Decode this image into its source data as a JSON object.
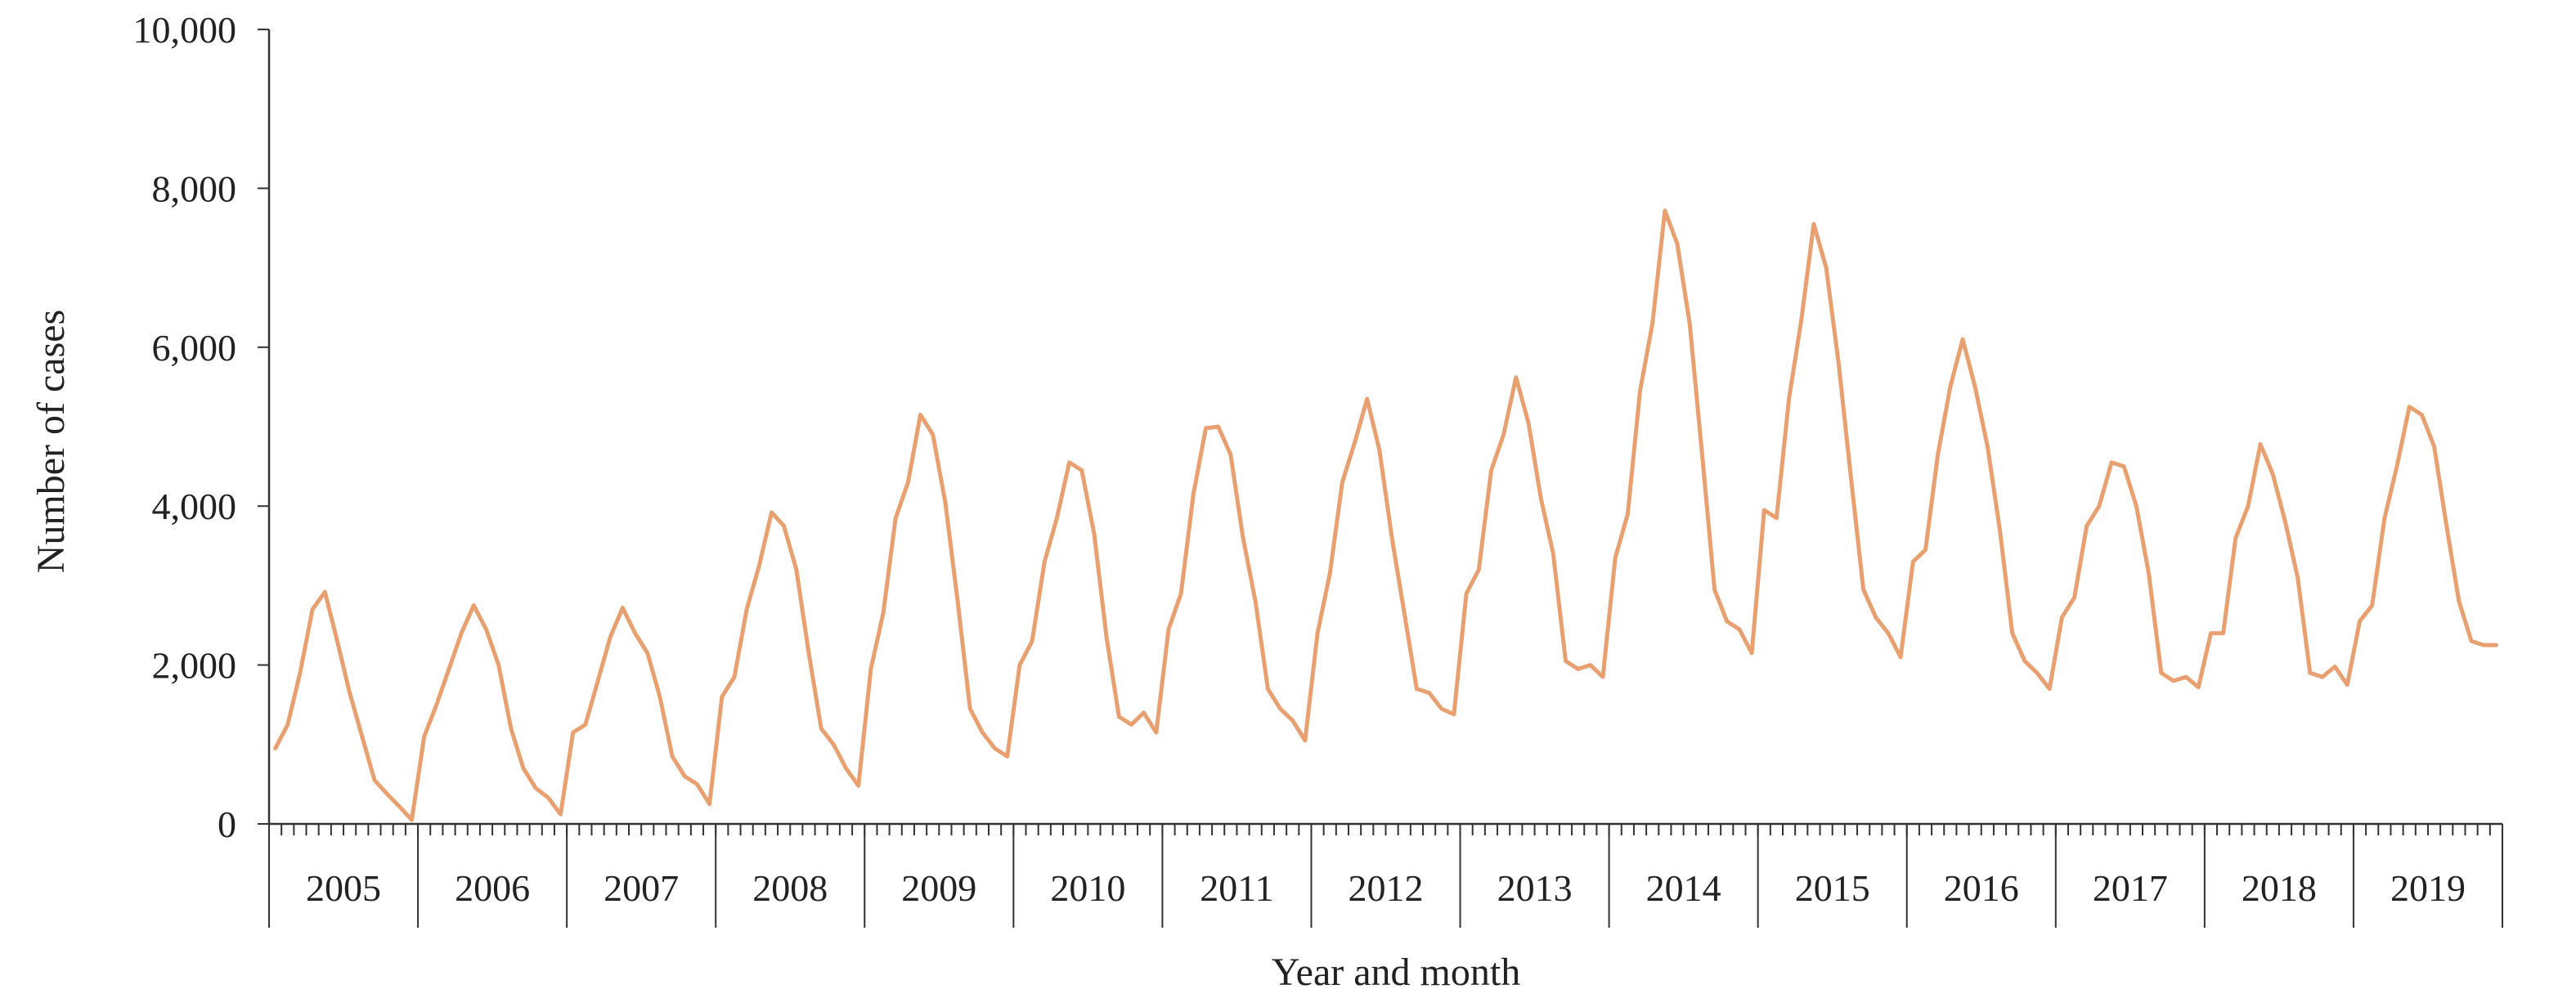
{
  "chart_data": {
    "type": "line",
    "title": "",
    "xlabel": "Year and month",
    "ylabel": "Number of cases",
    "ylim": [
      0,
      10000
    ],
    "y_ticks": [
      "0",
      "2,000",
      "4,000",
      "6,000",
      "8,000",
      "10,000"
    ],
    "y_tick_values": [
      0,
      2000,
      4000,
      6000,
      8000,
      10000
    ],
    "grid": false,
    "legend": "none",
    "line_color": "#E8A070",
    "years": [
      "2005",
      "2006",
      "2007",
      "2008",
      "2009",
      "2010",
      "2011",
      "2012",
      "2013",
      "2014",
      "2015",
      "2016",
      "2017",
      "2018",
      "2019"
    ],
    "series": [
      {
        "values": [
          950,
          1250,
          1900,
          2700,
          2920,
          2300,
          1650,
          1100,
          550,
          380,
          220,
          50,
          1100,
          1500,
          1950,
          2400,
          2750,
          2450,
          2000,
          1200,
          700,
          450,
          330,
          120,
          1150,
          1250,
          1800,
          2350,
          2720,
          2400,
          2150,
          1600,
          850,
          600,
          500,
          250,
          1600,
          1850,
          2700,
          3250,
          3920,
          3750,
          3200,
          2150,
          1200,
          1000,
          700,
          480,
          1950,
          2650,
          3850,
          4300,
          5150,
          4900,
          4050,
          2800,
          1450,
          1150,
          950,
          850,
          2000,
          2300,
          3300,
          3850,
          4550,
          4450,
          3650,
          2350,
          1350,
          1250,
          1400,
          1150,
          2450,
          2900,
          4150,
          4980,
          5000,
          4650,
          3600,
          2800,
          1700,
          1450,
          1300,
          1050,
          2400,
          3150,
          4300,
          4800,
          5350,
          4700,
          3600,
          2650,
          1700,
          1650,
          1450,
          1380,
          2900,
          3200,
          4450,
          4900,
          5620,
          5050,
          4100,
          3400,
          2050,
          1950,
          2000,
          1850,
          3350,
          3900,
          5450,
          6300,
          7720,
          7300,
          6300,
          4650,
          2950,
          2550,
          2450,
          2150,
          3950,
          3850,
          5350,
          6350,
          7550,
          7000,
          5800,
          4350,
          2950,
          2600,
          2400,
          2100,
          3300,
          3450,
          4650,
          5500,
          6100,
          5500,
          4750,
          3700,
          2400,
          2050,
          1900,
          1700,
          2600,
          2850,
          3750,
          4000,
          4550,
          4500,
          4000,
          3150,
          1900,
          1800,
          1850,
          1720,
          2400,
          2400,
          3600,
          4000,
          4780,
          4400,
          3800,
          3100,
          1900,
          1850,
          1980,
          1750,
          2550,
          2750,
          3850,
          4500,
          5250,
          5150,
          4750,
          3750,
          2800,
          2300,
          2250,
          2250
        ]
      }
    ]
  }
}
